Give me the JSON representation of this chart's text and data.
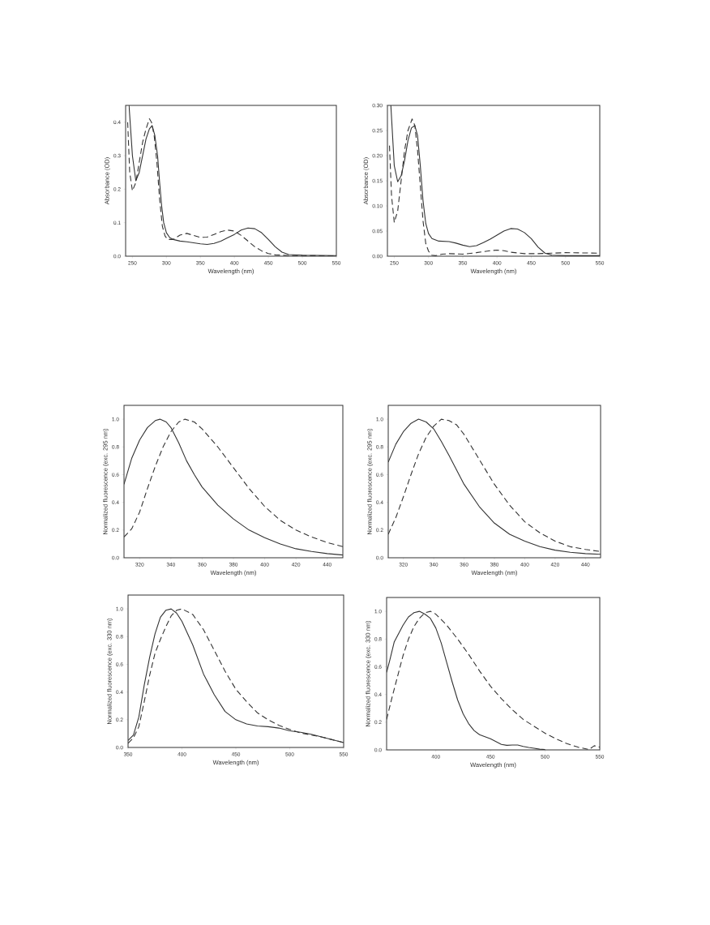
{
  "chart_data": [
    {
      "type": "line",
      "xlabel": "Wavelength (nm)",
      "ylabel": "Absorbance (OD)",
      "xlim": [
        240,
        550
      ],
      "ylim": [
        0,
        0.45
      ],
      "xticks": [
        250,
        300,
        350,
        400,
        450,
        500,
        550
      ],
      "yticks": [
        {
          "value": 0,
          "label": "0.0"
        },
        {
          "value": 0.1,
          "label": "0.1"
        },
        {
          "value": 0.2,
          "label": "0.2"
        },
        {
          "value": 0.3,
          "label": "0.3"
        },
        {
          "value": 0.4,
          "label": "0.4"
        }
      ],
      "series": [
        {
          "color": "#333333",
          "line_style": "solid",
          "x": [
            245,
            250,
            255,
            260,
            265,
            270,
            275,
            279,
            283,
            287,
            290,
            293,
            296,
            300,
            305,
            310,
            320,
            330,
            340,
            350,
            360,
            370,
            380,
            390,
            400,
            410,
            420,
            430,
            440,
            450,
            460,
            470,
            480,
            500,
            550
          ],
          "values": [
            0.45,
            0.3,
            0.225,
            0.25,
            0.3,
            0.35,
            0.38,
            0.39,
            0.36,
            0.3,
            0.22,
            0.15,
            0.1,
            0.07,
            0.055,
            0.05,
            0.045,
            0.043,
            0.04,
            0.037,
            0.035,
            0.038,
            0.045,
            0.055,
            0.065,
            0.078,
            0.084,
            0.082,
            0.07,
            0.05,
            0.028,
            0.012,
            0.005,
            0.003,
            0.002
          ]
        },
        {
          "color": "#333333",
          "line_style": "dashed",
          "x": [
            243,
            246,
            250,
            255,
            260,
            265,
            270,
            275,
            278,
            282,
            286,
            290,
            294,
            298,
            302,
            310,
            320,
            330,
            340,
            350,
            360,
            370,
            380,
            390,
            400,
            410,
            420,
            430,
            440,
            450,
            460,
            480,
            550
          ],
          "values": [
            0.4,
            0.25,
            0.195,
            0.22,
            0.28,
            0.34,
            0.38,
            0.41,
            0.4,
            0.36,
            0.28,
            0.17,
            0.09,
            0.06,
            0.05,
            0.05,
            0.063,
            0.068,
            0.062,
            0.056,
            0.057,
            0.065,
            0.073,
            0.078,
            0.075,
            0.062,
            0.045,
            0.028,
            0.016,
            0.008,
            0.004,
            0.002,
            0.001
          ]
        }
      ]
    },
    {
      "type": "line",
      "xlabel": "Wavelength (nm)",
      "ylabel": "Absorbance (OD)",
      "xlim": [
        240,
        550
      ],
      "ylim": [
        0,
        0.3
      ],
      "xticks": [
        250,
        300,
        350,
        400,
        450,
        500,
        550
      ],
      "yticks": [
        {
          "value": 0,
          "label": "0.00"
        },
        {
          "value": 0.05,
          "label": "0.05"
        },
        {
          "value": 0.1,
          "label": "0.10"
        },
        {
          "value": 0.15,
          "label": "0.15"
        },
        {
          "value": 0.2,
          "label": "0.20"
        },
        {
          "value": 0.25,
          "label": "0.25"
        },
        {
          "value": 0.3,
          "label": "0.30"
        }
      ],
      "series": [
        {
          "color": "#333333",
          "line_style": "solid",
          "x": [
            245,
            250,
            255,
            260,
            265,
            270,
            275,
            280,
            284,
            288,
            292,
            296,
            300,
            305,
            315,
            330,
            340,
            350,
            360,
            370,
            380,
            390,
            400,
            410,
            420,
            430,
            440,
            450,
            460,
            470,
            480,
            500,
            550
          ],
          "values": [
            0.3,
            0.18,
            0.148,
            0.16,
            0.19,
            0.23,
            0.255,
            0.26,
            0.24,
            0.18,
            0.11,
            0.065,
            0.045,
            0.035,
            0.03,
            0.029,
            0.026,
            0.022,
            0.019,
            0.021,
            0.027,
            0.034,
            0.042,
            0.05,
            0.055,
            0.054,
            0.047,
            0.035,
            0.018,
            0.006,
            0.002,
            0.001,
            0.001
          ]
        },
        {
          "color": "#333333",
          "line_style": "dashed",
          "x": [
            243,
            246,
            250,
            255,
            260,
            265,
            270,
            276,
            280,
            284,
            288,
            292,
            296,
            300,
            305,
            310,
            320,
            330,
            350,
            370,
            390,
            400,
            410,
            420,
            440,
            460,
            480,
            500,
            550
          ],
          "values": [
            0.22,
            0.12,
            0.067,
            0.09,
            0.15,
            0.21,
            0.25,
            0.273,
            0.26,
            0.21,
            0.14,
            0.07,
            0.025,
            0.01,
            0.002,
            0.001,
            0.004,
            0.005,
            0.004,
            0.007,
            0.011,
            0.012,
            0.011,
            0.008,
            0.005,
            0.005,
            0.006,
            0.007,
            0.006
          ]
        }
      ]
    },
    {
      "type": "line",
      "xlabel": "Wavelength (nm)",
      "ylabel": "Normalized fluorescence (exc. 295 nm)",
      "xlim": [
        310,
        450
      ],
      "ylim": [
        0,
        1.1
      ],
      "xticks": [
        320,
        340,
        360,
        380,
        400,
        420,
        440
      ],
      "yticks": [
        {
          "value": 0,
          "label": "0.0"
        },
        {
          "value": 0.2,
          "label": "0.2"
        },
        {
          "value": 0.4,
          "label": "0.4"
        },
        {
          "value": 0.6,
          "label": "0.6"
        },
        {
          "value": 0.8,
          "label": "0.8"
        },
        {
          "value": 1,
          "label": "1.0"
        }
      ],
      "series": [
        {
          "color": "#333333",
          "line_style": "solid",
          "x": [
            310,
            315,
            320,
            325,
            330,
            333,
            337,
            340,
            345,
            350,
            355,
            360,
            370,
            380,
            390,
            400,
            410,
            420,
            430,
            440,
            450
          ],
          "values": [
            0.53,
            0.72,
            0.85,
            0.94,
            0.99,
            1.0,
            0.98,
            0.94,
            0.83,
            0.7,
            0.6,
            0.51,
            0.38,
            0.28,
            0.2,
            0.145,
            0.1,
            0.065,
            0.045,
            0.03,
            0.02
          ]
        },
        {
          "color": "#333333",
          "line_style": "dashed",
          "x": [
            310,
            315,
            320,
            325,
            330,
            335,
            340,
            345,
            349,
            355,
            360,
            370,
            380,
            390,
            400,
            410,
            420,
            430,
            440,
            450
          ],
          "values": [
            0.15,
            0.21,
            0.33,
            0.5,
            0.66,
            0.8,
            0.91,
            0.98,
            1.0,
            0.98,
            0.93,
            0.8,
            0.65,
            0.5,
            0.37,
            0.27,
            0.2,
            0.15,
            0.11,
            0.08
          ]
        }
      ]
    },
    {
      "type": "line",
      "xlabel": "Wavelength (nm)",
      "ylabel": "Normalized fluorescence (exc. 295 nm)",
      "xlim": [
        310,
        450
      ],
      "ylim": [
        0,
        1.1
      ],
      "xticks": [
        320,
        340,
        360,
        380,
        400,
        420,
        440
      ],
      "yticks": [
        {
          "value": 0,
          "label": "0.0"
        },
        {
          "value": 0.2,
          "label": "0.2"
        },
        {
          "value": 0.4,
          "label": "0.4"
        },
        {
          "value": 0.6,
          "label": "0.6"
        },
        {
          "value": 0.8,
          "label": "0.8"
        },
        {
          "value": 1,
          "label": "1.0"
        }
      ],
      "series": [
        {
          "color": "#333333",
          "line_style": "solid",
          "x": [
            310,
            315,
            320,
            325,
            330,
            335,
            340,
            345,
            350,
            360,
            370,
            380,
            390,
            400,
            410,
            420,
            430,
            440,
            450
          ],
          "values": [
            0.69,
            0.82,
            0.91,
            0.97,
            1.0,
            0.98,
            0.93,
            0.84,
            0.74,
            0.53,
            0.37,
            0.25,
            0.17,
            0.12,
            0.08,
            0.055,
            0.04,
            0.03,
            0.025
          ]
        },
        {
          "color": "#333333",
          "line_style": "dashed",
          "x": [
            310,
            315,
            320,
            325,
            330,
            335,
            340,
            345,
            350,
            355,
            360,
            370,
            380,
            390,
            400,
            410,
            420,
            430,
            440,
            450
          ],
          "values": [
            0.17,
            0.29,
            0.44,
            0.6,
            0.75,
            0.87,
            0.95,
            1.0,
            0.99,
            0.96,
            0.89,
            0.71,
            0.53,
            0.38,
            0.26,
            0.18,
            0.12,
            0.08,
            0.06,
            0.045
          ]
        }
      ]
    },
    {
      "type": "line",
      "xlabel": "Wavelength (nm)",
      "ylabel": "Normalized fluorescence (exc. 330 nm)",
      "xlim": [
        350,
        550
      ],
      "ylim": [
        0,
        1.1
      ],
      "xticks": [
        350,
        400,
        450,
        500,
        550
      ],
      "yticks": [
        {
          "value": 0,
          "label": "0.0"
        },
        {
          "value": 0.2,
          "label": "0.2"
        },
        {
          "value": 0.4,
          "label": "0.4"
        },
        {
          "value": 0.6,
          "label": "0.6"
        },
        {
          "value": 0.8,
          "label": "0.8"
        },
        {
          "value": 1,
          "label": "1.0"
        }
      ],
      "series": [
        {
          "color": "#333333",
          "line_style": "solid",
          "x": [
            350,
            355,
            360,
            365,
            370,
            375,
            380,
            385,
            390,
            395,
            400,
            410,
            420,
            430,
            440,
            450,
            460,
            470,
            480,
            490,
            500,
            510,
            520,
            530,
            540,
            550
          ],
          "values": [
            0.05,
            0.09,
            0.22,
            0.45,
            0.65,
            0.82,
            0.94,
            0.99,
            1.0,
            0.97,
            0.91,
            0.74,
            0.53,
            0.38,
            0.26,
            0.2,
            0.17,
            0.155,
            0.15,
            0.14,
            0.12,
            0.11,
            0.095,
            0.075,
            0.055,
            0.035
          ]
        },
        {
          "color": "#333333",
          "line_style": "dashed",
          "x": [
            350,
            355,
            360,
            365,
            370,
            375,
            380,
            385,
            390,
            395,
            400,
            410,
            420,
            430,
            440,
            450,
            460,
            470,
            480,
            490,
            500,
            510,
            520,
            530,
            540,
            550
          ],
          "values": [
            0.03,
            0.07,
            0.15,
            0.33,
            0.52,
            0.68,
            0.78,
            0.87,
            0.95,
            0.99,
            1.0,
            0.96,
            0.85,
            0.7,
            0.55,
            0.42,
            0.33,
            0.25,
            0.2,
            0.16,
            0.13,
            0.105,
            0.09,
            0.075,
            0.055,
            0.035
          ]
        }
      ]
    },
    {
      "type": "line",
      "xlabel": "Wavelength (nm)",
      "ylabel": "Normalized fluorescence (exc. 330 nm)",
      "xlim": [
        355,
        550
      ],
      "ylim": [
        0,
        1.1
      ],
      "xticks": [
        400,
        450,
        500,
        550
      ],
      "yticks": [
        {
          "value": 0,
          "label": "0.0"
        },
        {
          "value": 0.2,
          "label": "0.2"
        },
        {
          "value": 0.4,
          "label": "0.4"
        },
        {
          "value": 0.6,
          "label": "0.6"
        },
        {
          "value": 0.8,
          "label": "0.8"
        },
        {
          "value": 1,
          "label": "1.0"
        }
      ],
      "series": [
        {
          "color": "#333333",
          "line_style": "solid",
          "x": [
            355,
            358,
            362,
            366,
            370,
            375,
            380,
            385,
            390,
            395,
            400,
            405,
            410,
            415,
            420,
            425,
            430,
            435,
            440,
            445,
            450,
            455,
            460,
            465,
            470,
            475,
            480,
            485,
            490,
            495,
            500
          ],
          "values": [
            0.56,
            0.65,
            0.78,
            0.84,
            0.9,
            0.96,
            0.99,
            1.0,
            0.98,
            0.95,
            0.88,
            0.77,
            0.63,
            0.49,
            0.36,
            0.26,
            0.19,
            0.14,
            0.11,
            0.095,
            0.08,
            0.06,
            0.04,
            0.033,
            0.035,
            0.035,
            0.025,
            0.018,
            0.012,
            0.005,
            0.002
          ]
        },
        {
          "color": "#333333",
          "line_style": "dashed",
          "x": [
            355,
            360,
            365,
            370,
            375,
            380,
            385,
            390,
            395,
            400,
            410,
            420,
            430,
            440,
            450,
            460,
            470,
            480,
            490,
            500,
            510,
            520,
            530,
            540,
            545,
            550
          ],
          "values": [
            0.22,
            0.38,
            0.53,
            0.68,
            0.8,
            0.89,
            0.95,
            0.99,
            1.0,
            0.98,
            0.9,
            0.8,
            0.69,
            0.57,
            0.46,
            0.37,
            0.29,
            0.22,
            0.17,
            0.12,
            0.08,
            0.045,
            0.02,
            0.003,
            0.03,
            0.02
          ]
        }
      ]
    }
  ]
}
